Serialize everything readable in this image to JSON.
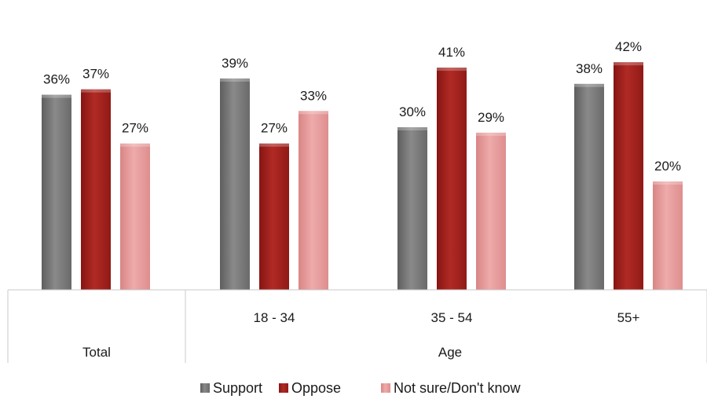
{
  "chart_data": {
    "type": "bar",
    "groups": [
      {
        "label": "Total",
        "categories": [
          ""
        ]
      },
      {
        "label": "Age",
        "categories": [
          "18 - 34",
          "35 - 54",
          "55+"
        ]
      }
    ],
    "categories": [
      "",
      "18 - 34",
      "35 - 54",
      "55+"
    ],
    "series": [
      {
        "name": "Support",
        "values": [
          36,
          39,
          30,
          38
        ],
        "color": "#808080"
      },
      {
        "name": "Oppose",
        "values": [
          37,
          27,
          41,
          42
        ],
        "color": "#a8201c"
      },
      {
        "name": "Not sure/Don't know",
        "values": [
          27,
          33,
          29,
          20
        ],
        "color": "#e89c9c"
      }
    ],
    "value_format": "%",
    "ylim": [
      0,
      46
    ],
    "legend_position": "bottom",
    "grid": false
  }
}
